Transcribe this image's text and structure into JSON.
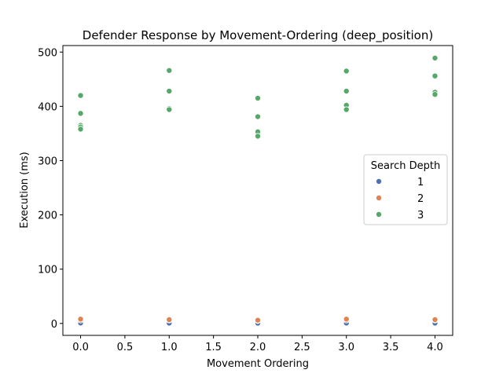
{
  "chart_data": {
    "type": "scatter",
    "title": "Defender Response by Movement-Ordering (deep_position)",
    "xlabel": "Movement Ordering",
    "ylabel": "Execution (ms)",
    "xlim": [
      -0.2,
      4.2
    ],
    "ylim": [
      -22,
      512
    ],
    "xticks": [
      0.0,
      0.5,
      1.0,
      1.5,
      2.0,
      2.5,
      3.0,
      3.5,
      4.0
    ],
    "xtick_labels": [
      "0.0",
      "0.5",
      "1.0",
      "1.5",
      "2.0",
      "2.5",
      "3.0",
      "3.5",
      "4.0"
    ],
    "yticks": [
      0,
      100,
      200,
      300,
      400,
      500
    ],
    "ytick_labels": [
      "0",
      "100",
      "200",
      "300",
      "400",
      "500"
    ],
    "grid": false,
    "legend": {
      "title": "Search Depth",
      "position": "center-right"
    },
    "series": [
      {
        "name": "1",
        "color": "#4c72b0",
        "x": [
          0,
          0,
          1,
          1,
          2,
          2,
          3,
          3,
          4,
          4
        ],
        "y": [
          0.4,
          0.8,
          0.3,
          0.6,
          0.3,
          0.5,
          0.4,
          0.7,
          0.4,
          0.6
        ]
      },
      {
        "name": "2",
        "color": "#dd8452",
        "x": [
          0,
          0,
          1,
          1,
          2,
          2,
          3,
          3,
          4,
          4
        ],
        "y": [
          6,
          8,
          6,
          7,
          5,
          6,
          6,
          8,
          6,
          7
        ]
      },
      {
        "name": "3",
        "color": "#55a868",
        "x": [
          0,
          0,
          0,
          0,
          0,
          1,
          1,
          1,
          1,
          2,
          2,
          2,
          2,
          2,
          3,
          3,
          3,
          3,
          4,
          4,
          4,
          4
        ],
        "y": [
          420,
          387,
          365,
          362,
          358,
          466,
          428,
          396,
          394,
          416,
          381,
          353,
          345,
          415,
          465,
          428,
          402,
          394,
          489,
          456,
          426,
          422
        ]
      }
    ]
  }
}
